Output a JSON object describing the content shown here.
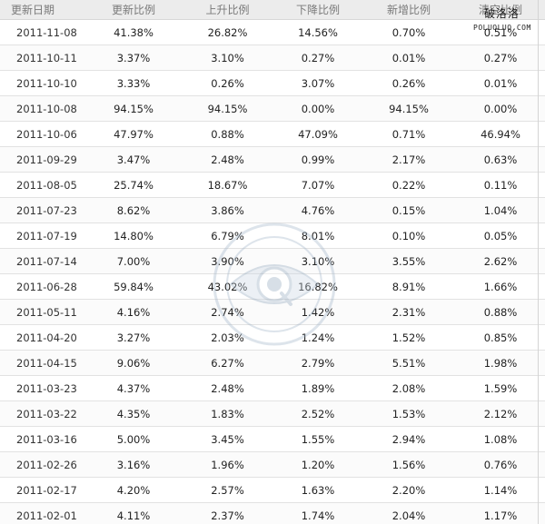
{
  "table": {
    "headers": [
      "更新日期",
      "更新比例",
      "上升比例",
      "下降比例",
      "新增比例",
      "清空比例"
    ],
    "rows": [
      [
        "2011-11-08",
        "41.38%",
        "26.82%",
        "14.56%",
        "0.70%",
        "0.51%"
      ],
      [
        "2011-10-11",
        "3.37%",
        "3.10%",
        "0.27%",
        "0.01%",
        "0.27%"
      ],
      [
        "2011-10-10",
        "3.33%",
        "0.26%",
        "3.07%",
        "0.26%",
        "0.01%"
      ],
      [
        "2011-10-08",
        "94.15%",
        "94.15%",
        "0.00%",
        "94.15%",
        "0.00%"
      ],
      [
        "2011-10-06",
        "47.97%",
        "0.88%",
        "47.09%",
        "0.71%",
        "46.94%"
      ],
      [
        "2011-09-29",
        "3.47%",
        "2.48%",
        "0.99%",
        "2.17%",
        "0.63%"
      ],
      [
        "2011-08-05",
        "25.74%",
        "18.67%",
        "7.07%",
        "0.22%",
        "0.11%"
      ],
      [
        "2011-07-23",
        "8.62%",
        "3.86%",
        "4.76%",
        "0.15%",
        "1.04%"
      ],
      [
        "2011-07-19",
        "14.80%",
        "6.79%",
        "8.01%",
        "0.10%",
        "0.05%"
      ],
      [
        "2011-07-14",
        "7.00%",
        "3.90%",
        "3.10%",
        "3.55%",
        "2.62%"
      ],
      [
        "2011-06-28",
        "59.84%",
        "43.02%",
        "16.82%",
        "8.91%",
        "1.66%"
      ],
      [
        "2011-05-11",
        "4.16%",
        "2.74%",
        "1.42%",
        "2.31%",
        "0.88%"
      ],
      [
        "2011-04-20",
        "3.27%",
        "2.03%",
        "1.24%",
        "1.52%",
        "0.85%"
      ],
      [
        "2011-04-15",
        "9.06%",
        "6.27%",
        "2.79%",
        "5.51%",
        "1.98%"
      ],
      [
        "2011-03-23",
        "4.37%",
        "2.48%",
        "1.89%",
        "2.08%",
        "1.59%"
      ],
      [
        "2011-03-22",
        "4.35%",
        "1.83%",
        "2.52%",
        "1.53%",
        "2.12%"
      ],
      [
        "2011-03-16",
        "5.00%",
        "3.45%",
        "1.55%",
        "2.94%",
        "1.08%"
      ],
      [
        "2011-02-26",
        "3.16%",
        "1.96%",
        "1.20%",
        "1.56%",
        "0.76%"
      ],
      [
        "2011-02-17",
        "4.20%",
        "2.57%",
        "1.63%",
        "2.20%",
        "1.14%"
      ],
      [
        "2011-02-01",
        "4.11%",
        "2.37%",
        "1.74%",
        "2.04%",
        "1.17%"
      ]
    ]
  },
  "watermark": {
    "site_name": "破洛洛",
    "site_url": "POLUOLUO.COM",
    "icon": "eye-seal-icon",
    "color": "#9fb3c8"
  },
  "colors": {
    "header_bg": "#ececec",
    "header_text": "#7a7a7a",
    "cell_text": "#222222",
    "row_border": "#e2e2e2"
  }
}
